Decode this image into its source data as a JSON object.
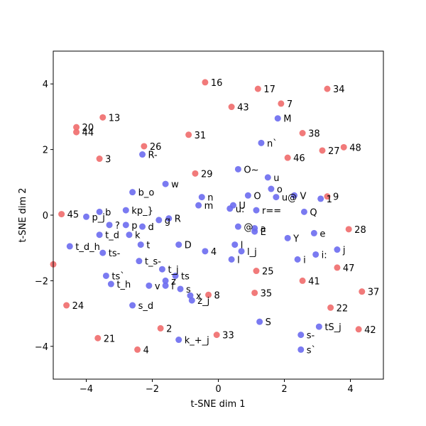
{
  "chart_data": {
    "type": "scatter",
    "title": "",
    "xlabel": "t-SNE dim 1",
    "ylabel": "t-SNE dim 2",
    "xlim": [
      -5,
      5
    ],
    "ylim": [
      -5,
      5
    ],
    "xticks": [
      -4,
      -2,
      0,
      2,
      4
    ],
    "yticks": [
      -4,
      -2,
      0,
      2,
      4
    ],
    "grid": false,
    "colors": {
      "blue": "#6b6bf0",
      "red": "#f06b6b"
    },
    "series": [
      {
        "color_key": "blue",
        "points": [
          {
            "x": 1.8,
            "y": 2.95,
            "label": "M"
          },
          {
            "x": 1.3,
            "y": 2.2,
            "label": "n`"
          },
          {
            "x": -2.3,
            "y": 1.85,
            "label": "R-"
          },
          {
            "x": 0.6,
            "y": 1.4,
            "label": "O~"
          },
          {
            "x": 1.5,
            "y": 1.15,
            "label": "u"
          },
          {
            "x": -1.6,
            "y": 0.95,
            "label": "w"
          },
          {
            "x": 1.6,
            "y": 0.8,
            "label": "o"
          },
          {
            "x": -2.6,
            "y": 0.7,
            "label": "b_o"
          },
          {
            "x": 0.9,
            "y": 0.6,
            "label": "O"
          },
          {
            "x": -0.5,
            "y": 0.55,
            "label": "n"
          },
          {
            "x": 1.75,
            "y": 0.55,
            "label": "u@"
          },
          {
            "x": 2.3,
            "y": 0.6,
            "label": "V"
          },
          {
            "x": 3.1,
            "y": 0.5,
            "label": "1"
          },
          {
            "x": -0.6,
            "y": 0.3,
            "label": "m"
          },
          {
            "x": 0.45,
            "y": 0.3,
            "label": "U"
          },
          {
            "x": 0.35,
            "y": 0.2,
            "label": "u:"
          },
          {
            "x": -2.8,
            "y": 0.15,
            "label": "kp_}"
          },
          {
            "x": 1.15,
            "y": 0.15,
            "label": "r=="
          },
          {
            "x": 2.6,
            "y": 0.1,
            "label": "Q"
          },
          {
            "x": -3.6,
            "y": 0.1,
            "label": "b"
          },
          {
            "x": -4.0,
            "y": -0.05,
            "label": "p_j"
          },
          {
            "x": -1.5,
            "y": -0.1,
            "label": "R"
          },
          {
            "x": -1.8,
            "y": -0.15,
            "label": "g"
          },
          {
            "x": -3.3,
            "y": -0.3,
            "label": "?"
          },
          {
            "x": -2.8,
            "y": -0.3,
            "label": "p"
          },
          {
            "x": -2.3,
            "y": -0.35,
            "label": "d"
          },
          {
            "x": 0.6,
            "y": -0.35,
            "label": "@"
          },
          {
            "x": 1.1,
            "y": -0.4,
            "label": "a"
          },
          {
            "x": 1.1,
            "y": -0.5,
            "label": "E"
          },
          {
            "x": -3.6,
            "y": -0.6,
            "label": "t_d"
          },
          {
            "x": -2.7,
            "y": -0.6,
            "label": "k"
          },
          {
            "x": 2.9,
            "y": -0.55,
            "label": "e"
          },
          {
            "x": 2.1,
            "y": -0.7,
            "label": "Y"
          },
          {
            "x": -2.35,
            "y": -0.9,
            "label": "t"
          },
          {
            "x": -1.2,
            "y": -0.9,
            "label": "D"
          },
          {
            "x": 0.5,
            "y": -0.9,
            "label": "l"
          },
          {
            "x": -4.5,
            "y": -0.95,
            "label": "t_d_h"
          },
          {
            "x": -3.5,
            "y": -1.15,
            "label": "ts-"
          },
          {
            "x": 0.7,
            "y": -1.1,
            "label": "l_j"
          },
          {
            "x": -0.4,
            "y": -1.1,
            "label": "4"
          },
          {
            "x": 3.6,
            "y": -1.05,
            "label": "j"
          },
          {
            "x": 2.95,
            "y": -1.2,
            "label": "i:"
          },
          {
            "x": 2.4,
            "y": -1.35,
            "label": "i"
          },
          {
            "x": 0.4,
            "y": -1.35,
            "label": "l"
          },
          {
            "x": -2.4,
            "y": -1.4,
            "label": "t_s-"
          },
          {
            "x": -1.7,
            "y": -1.65,
            "label": "t_j"
          },
          {
            "x": -3.4,
            "y": -1.85,
            "label": "ts`"
          },
          {
            "x": -1.3,
            "y": -1.85,
            "label": "ts"
          },
          {
            "x": -1.6,
            "y": -2.0,
            "label": "z"
          },
          {
            "x": -3.25,
            "y": -2.1,
            "label": "t_h"
          },
          {
            "x": -2.1,
            "y": -2.15,
            "label": "v"
          },
          {
            "x": -1.6,
            "y": -2.15,
            "label": "f"
          },
          {
            "x": -1.15,
            "y": -2.25,
            "label": "s"
          },
          {
            "x": -0.85,
            "y": -2.45,
            "label": "x"
          },
          {
            "x": -0.8,
            "y": -2.6,
            "label": "z_j"
          },
          {
            "x": -2.6,
            "y": -2.75,
            "label": "s_d"
          },
          {
            "x": 1.25,
            "y": -3.25,
            "label": "S"
          },
          {
            "x": 3.05,
            "y": -3.4,
            "label": "tS_j"
          },
          {
            "x": 2.5,
            "y": -3.65,
            "label": "s-"
          },
          {
            "x": -1.2,
            "y": -3.8,
            "label": "k_+_j"
          },
          {
            "x": 2.5,
            "y": -4.1,
            "label": "s`"
          }
        ]
      },
      {
        "color_key": "red",
        "points": [
          {
            "x": -0.4,
            "y": 4.05,
            "label": "16"
          },
          {
            "x": 1.2,
            "y": 3.85,
            "label": "17"
          },
          {
            "x": 3.3,
            "y": 3.85,
            "label": "34"
          },
          {
            "x": 1.9,
            "y": 3.4,
            "label": "7"
          },
          {
            "x": 0.4,
            "y": 3.3,
            "label": "43"
          },
          {
            "x": -3.5,
            "y": 2.98,
            "label": "13"
          },
          {
            "x": -4.3,
            "y": 2.68,
            "label": "20"
          },
          {
            "x": -4.3,
            "y": 2.53,
            "label": "44"
          },
          {
            "x": 2.55,
            "y": 2.5,
            "label": "38"
          },
          {
            "x": -0.9,
            "y": 2.45,
            "label": "31"
          },
          {
            "x": -2.25,
            "y": 2.1,
            "label": "26"
          },
          {
            "x": 3.15,
            "y": 1.97,
            "label": "27"
          },
          {
            "x": 3.8,
            "y": 2.07,
            "label": "48"
          },
          {
            "x": 2.1,
            "y": 1.75,
            "label": "46"
          },
          {
            "x": -3.6,
            "y": 1.72,
            "label": "3"
          },
          {
            "x": -0.7,
            "y": 1.27,
            "label": "29"
          },
          {
            "x": 3.3,
            "y": 0.57,
            "label": "9"
          },
          {
            "x": -4.75,
            "y": 0.03,
            "label": "45"
          },
          {
            "x": 3.95,
            "y": -0.43,
            "label": "28"
          },
          {
            "x": -5.0,
            "y": -1.5,
            "label": ""
          },
          {
            "x": 3.6,
            "y": -1.6,
            "label": "47"
          },
          {
            "x": 1.15,
            "y": -1.7,
            "label": "25"
          },
          {
            "x": 2.55,
            "y": -2.0,
            "label": "41"
          },
          {
            "x": 1.1,
            "y": -2.37,
            "label": "35"
          },
          {
            "x": 4.35,
            "y": -2.33,
            "label": "37"
          },
          {
            "x": -0.3,
            "y": -2.43,
            "label": "8"
          },
          {
            "x": -4.6,
            "y": -2.75,
            "label": "24"
          },
          {
            "x": 3.4,
            "y": -2.82,
            "label": "22"
          },
          {
            "x": -1.75,
            "y": -3.45,
            "label": "2"
          },
          {
            "x": 4.25,
            "y": -3.48,
            "label": "42"
          },
          {
            "x": -0.05,
            "y": -3.65,
            "label": "33"
          },
          {
            "x": -3.65,
            "y": -3.75,
            "label": "21"
          },
          {
            "x": -2.45,
            "y": -4.1,
            "label": "4"
          }
        ]
      }
    ]
  }
}
